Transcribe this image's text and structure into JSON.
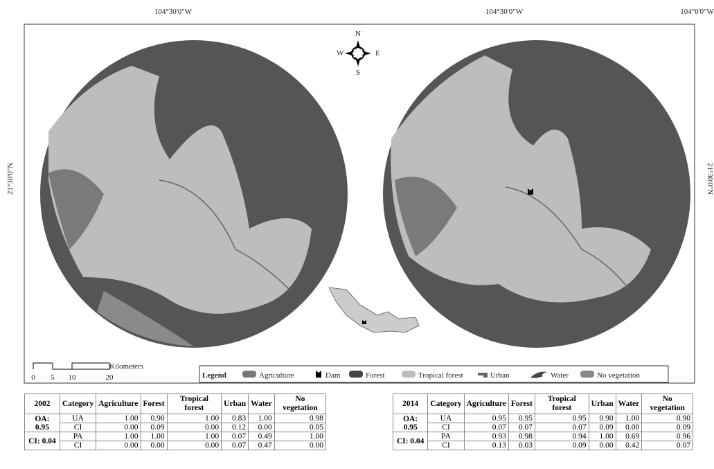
{
  "coordinates": {
    "top": [
      "104°30'0\"W",
      "104°30'0\"W",
      "104°0'0\"W"
    ],
    "left": "21°30'0\"N",
    "right": "21°30'0\"N"
  },
  "compass": {
    "n": "N",
    "e": "E",
    "s": "S",
    "w": "W"
  },
  "scale": {
    "unit": "Kilometers",
    "ticks": [
      "0",
      "5",
      "10",
      "20"
    ]
  },
  "legend": {
    "title": "Legend",
    "items": [
      "Agriculture",
      "Dam",
      "Forest",
      "Tropical forest",
      "Urban",
      "Water",
      "No vegetation"
    ]
  },
  "tables": [
    {
      "header": [
        "2002",
        "Category",
        "Agriculture",
        "Forest",
        "Tropical forest",
        "Urban",
        "Water",
        "No vegetation"
      ],
      "groups": [
        {
          "label": "OA: 0.95",
          "rows": [
            [
              "UA",
              "1.00",
              "0.90",
              "1.00",
              "0.83",
              "1.00",
              "0.98"
            ],
            [
              "CI",
              "0.00",
              "0.09",
              "0.00",
              "0.12",
              "0.00",
              "0.05"
            ]
          ]
        },
        {
          "label": "CI: 0.04",
          "rows": [
            [
              "PA",
              "1.00",
              "1.00",
              "1.00",
              "0.07",
              "0.49",
              "1.00"
            ],
            [
              "CI",
              "0.00",
              "0.00",
              "0.00",
              "0.07",
              "0.47",
              "0.00"
            ]
          ]
        }
      ]
    },
    {
      "header": [
        "2014",
        "Category",
        "Agriculture",
        "Forest",
        "Tropical forest",
        "Urban",
        "Water",
        "No vegetation"
      ],
      "groups": [
        {
          "label": "OA: 0.95",
          "rows": [
            [
              "UA",
              "0.95",
              "0.95",
              "0.95",
              "0.90",
              "1.00",
              "0.90"
            ],
            [
              "CI",
              "0.07",
              "0.07",
              "0.07",
              "0.09",
              "0.00",
              "0.09"
            ]
          ]
        },
        {
          "label": "CI: 0.04",
          "rows": [
            [
              "PA",
              "0.93",
              "0.98",
              "0.94",
              "1.00",
              "0.69",
              "0.96"
            ],
            [
              "CI",
              "0.13",
              "0.03",
              "0.09",
              "0.00",
              "0.42",
              "0.07"
            ]
          ]
        }
      ]
    }
  ]
}
